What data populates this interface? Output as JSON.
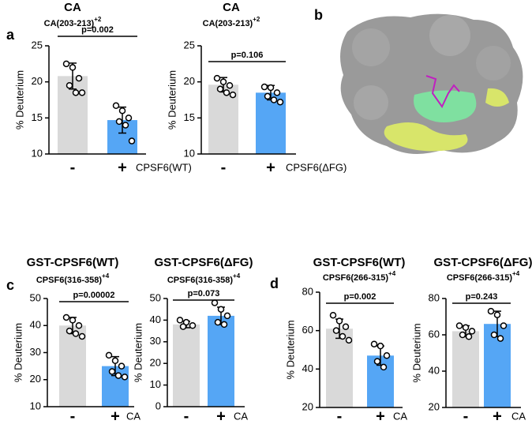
{
  "image_panel": {
    "label": "b"
  },
  "chart_data": [
    {
      "type": "bar",
      "panel": "a",
      "title": "CA",
      "subtitle": "CA(203-213)",
      "subtitle_sup": "+2",
      "annotation": "p=0.002",
      "categories": [
        "-",
        "+"
      ],
      "x_label": "CPSF6(WT)",
      "y_label": "% Deuterium",
      "values": [
        20.8,
        14.7
      ],
      "errors": [
        1.8,
        1.8
      ],
      "points": [
        [
          22.5,
          22,
          20.5,
          19.5,
          18.5,
          18.5
        ],
        [
          16.7,
          16,
          15,
          14.5,
          14,
          11.8
        ]
      ],
      "colors": [
        "#d9d9d9",
        "#55a6f5"
      ],
      "ylim": [
        10,
        25
      ],
      "yticks": [
        10,
        15,
        20,
        25
      ]
    },
    {
      "type": "bar",
      "title": "CA",
      "subtitle": "CA(203-213)",
      "subtitle_sup": "+2",
      "annotation": "p=0.106",
      "categories": [
        "-",
        "+"
      ],
      "x_label": "CPSF6(ΔFG)",
      "y_label": "% Deuterium",
      "values": [
        19.6,
        18.5
      ],
      "errors": [
        1,
        1
      ],
      "points": [
        [
          20.5,
          20,
          19.5,
          19,
          18.5,
          18.2
        ],
        [
          19.3,
          19.2,
          18.5,
          18,
          17.5,
          17.2
        ]
      ],
      "colors": [
        "#d9d9d9",
        "#55a6f5"
      ],
      "ylim": [
        10,
        25
      ],
      "yticks": [
        10,
        15,
        20,
        25
      ]
    },
    {
      "type": "bar",
      "panel": "c",
      "title": "GST-CPSF6(WT)",
      "subtitle": "CPSF6(316-358)",
      "subtitle_sup": "+4",
      "annotation": "p=0.00002",
      "categories": [
        "-",
        "+"
      ],
      "x_label": "CA",
      "y_label": "% Deuterium",
      "values": [
        40,
        25
      ],
      "errors": [
        3,
        3.5
      ],
      "points": [
        [
          43,
          42,
          40,
          38,
          37,
          36
        ],
        [
          29,
          27,
          25,
          23,
          21.5,
          21
        ]
      ],
      "colors": [
        "#d9d9d9",
        "#55a6f5"
      ],
      "ylim": [
        10,
        50
      ],
      "yticks": [
        10,
        20,
        30,
        40,
        50
      ]
    },
    {
      "type": "bar",
      "title": "GST-CPSF6(ΔFG)",
      "subtitle": "CPSF6(316-358)",
      "subtitle_sup": "+4",
      "annotation": "p=0.073",
      "categories": [
        "-",
        "+"
      ],
      "x_label": "CA",
      "y_label": "% Deuterium",
      "values": [
        38,
        42
      ],
      "errors": [
        1.5,
        4
      ],
      "points": [
        [
          40,
          39,
          37.5,
          37
        ],
        [
          48,
          45,
          42,
          39,
          38
        ]
      ],
      "colors": [
        "#d9d9d9",
        "#55a6f5"
      ],
      "ylim": [
        0,
        50
      ],
      "yticks": [
        0,
        10,
        20,
        30,
        40,
        50
      ]
    },
    {
      "type": "bar",
      "panel": "d",
      "title": "GST-CPSF6(WT)",
      "subtitle": "CPSF6(266-315)",
      "subtitle_sup": "+4",
      "annotation": "p=0.002",
      "categories": [
        "-",
        "+"
      ],
      "x_label": "CA",
      "y_label": "% Deuterium",
      "values": [
        61,
        47
      ],
      "errors": [
        5,
        5
      ],
      "points": [
        [
          68,
          65,
          62,
          60,
          57,
          55
        ],
        [
          53,
          52,
          47,
          44,
          41
        ]
      ],
      "colors": [
        "#d9d9d9",
        "#55a6f5"
      ],
      "ylim": [
        20,
        80
      ],
      "yticks": [
        20,
        40,
        60,
        80
      ]
    },
    {
      "type": "bar",
      "title": "GST-CPSF6(ΔFG)",
      "subtitle": "CPSF6(266-315)",
      "subtitle_sup": "+4",
      "annotation": "p=0.243",
      "categories": [
        "-",
        "+"
      ],
      "x_label": "CA",
      "y_label": "% Deuterium",
      "values": [
        62,
        66
      ],
      "errors": [
        3,
        7
      ],
      "points": [
        [
          65,
          64,
          62,
          60,
          59
        ],
        [
          73,
          71,
          65,
          60,
          58
        ]
      ],
      "colors": [
        "#d9d9d9",
        "#55a6f5"
      ],
      "ylim": [
        20,
        80
      ],
      "yticks": [
        20,
        40,
        60,
        80
      ]
    }
  ]
}
